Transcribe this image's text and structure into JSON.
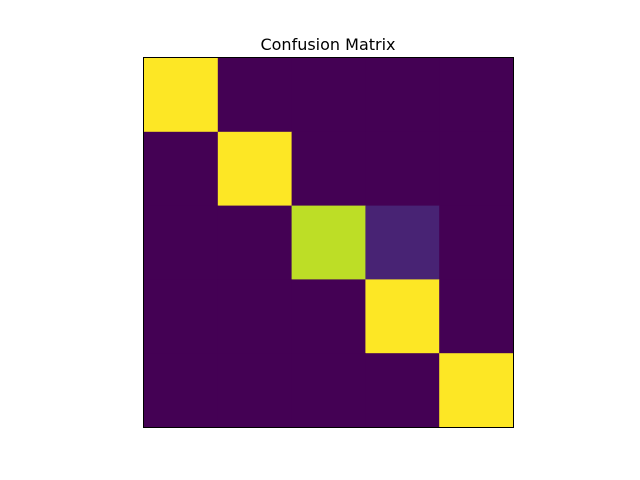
{
  "chart_data": {
    "type": "heatmap",
    "title": "Confusion Matrix",
    "xlabel": "",
    "ylabel": "",
    "rows": 5,
    "cols": 5,
    "values": [
      [
        1.0,
        0.0,
        0.0,
        0.0,
        0.0
      ],
      [
        0.0,
        1.0,
        0.0,
        0.0,
        0.0
      ],
      [
        0.0,
        0.0,
        0.9,
        0.1,
        0.0
      ],
      [
        0.0,
        0.0,
        0.0,
        1.0,
        0.0
      ],
      [
        0.0,
        0.0,
        0.0,
        0.0,
        1.0
      ]
    ],
    "colormap": "viridis",
    "color_low": "#440154",
    "color_high": "#fde725",
    "axes_ticks": false,
    "grid": false
  }
}
